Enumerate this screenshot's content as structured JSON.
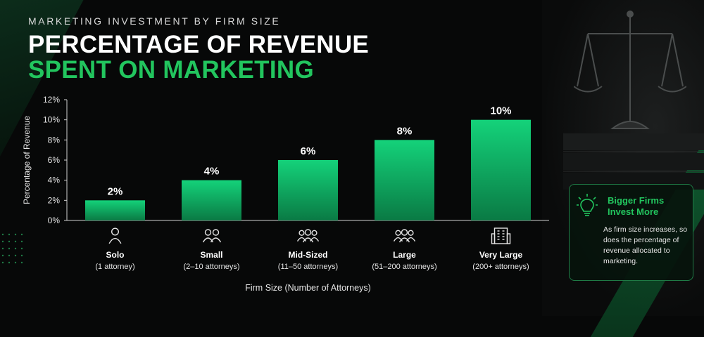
{
  "header": {
    "supertitle": "MARKETING INVESTMENT BY FIRM SIZE",
    "title_line1": "PERCENTAGE OF REVENUE",
    "title_line2": "SPENT ON MARKETING"
  },
  "colors": {
    "accent": "#22c55e",
    "bar_top": "#14d27a",
    "bar_bottom": "#0a7a44"
  },
  "chart_data": {
    "type": "bar",
    "categories": [
      "Solo",
      "Small",
      "Mid-Sized",
      "Large",
      "Very Large"
    ],
    "sublabels": [
      "(1 attorney)",
      "(2–10 attorneys)",
      "(11–50 attorneys)",
      "(51–200 attorneys)",
      "(200+ attorneys)"
    ],
    "icons": [
      "person-icon",
      "two-people-icon",
      "group-icon",
      "group-icon",
      "building-icon"
    ],
    "values": [
      2,
      4,
      6,
      8,
      10
    ],
    "data_labels": [
      "2%",
      "4%",
      "6%",
      "8%",
      "10%"
    ],
    "xlabel": "Firm Size (Number of Attorneys)",
    "ylabel": "Percentage of Revenue",
    "ylim": [
      0,
      12
    ],
    "yticks": [
      0,
      2,
      4,
      6,
      8,
      10,
      12
    ],
    "ytick_labels": [
      "0%",
      "2%",
      "4%",
      "6%",
      "8%",
      "10%",
      "12%"
    ],
    "grid": false
  },
  "callout": {
    "icon": "lightbulb-icon",
    "title": "Bigger Firms Invest More",
    "text": "As firm size increases, so does the percentage of revenue allocated to marketing."
  }
}
